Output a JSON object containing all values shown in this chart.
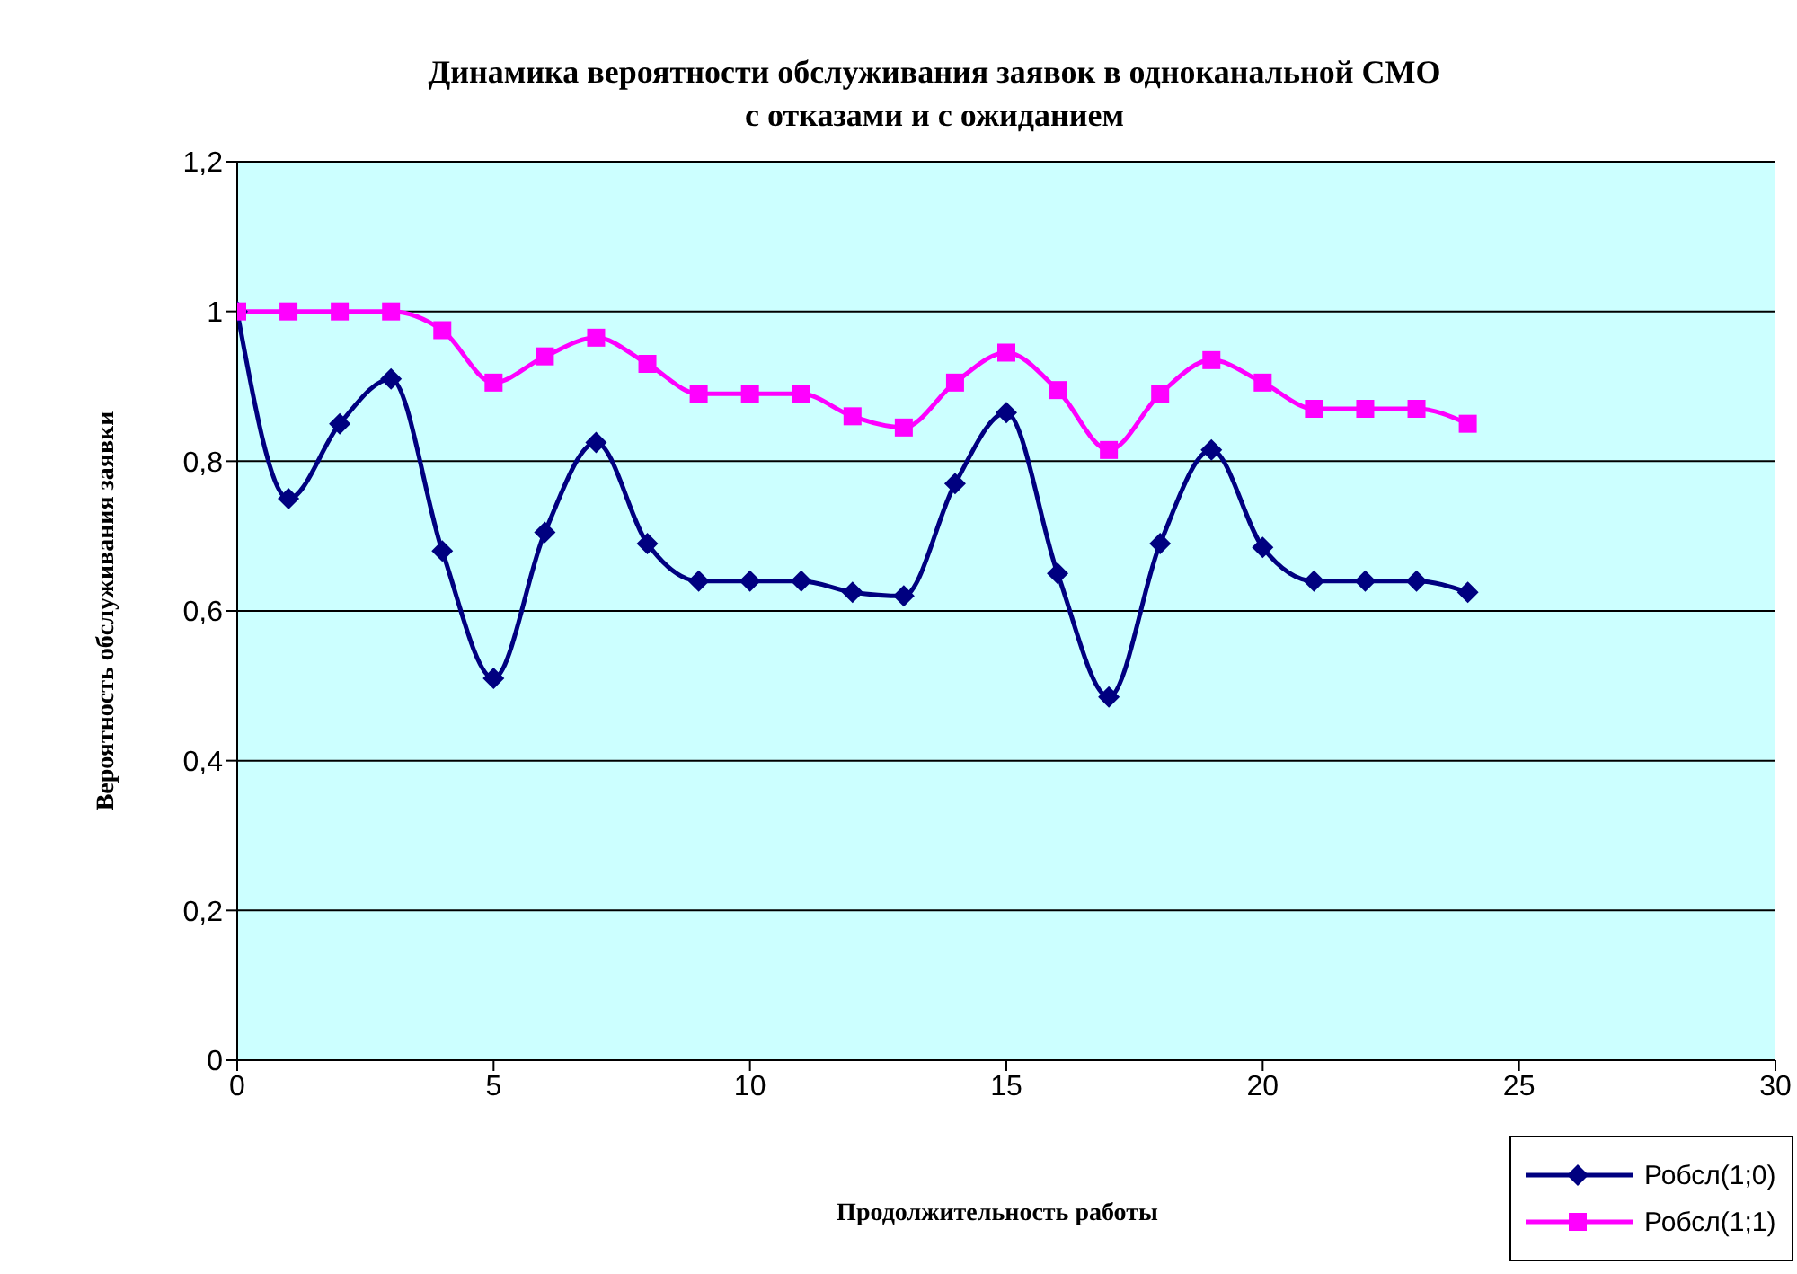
{
  "chart_data": {
    "type": "line",
    "title": "Динамика вероятности обслуживания заявок в одноканальной СМО\nс отказами и с ожиданием",
    "xlabel": "Продолжительность работы",
    "ylabel": "Вероятность обслуживания заявки",
    "x": [
      0,
      1,
      2,
      3,
      4,
      5,
      6,
      7,
      8,
      9,
      10,
      11,
      12,
      13,
      14,
      15,
      16,
      17,
      18,
      19,
      20,
      21,
      22,
      23,
      24
    ],
    "series": [
      {
        "name": "Робсл(1;0)",
        "color": "#000080",
        "marker": "diamond",
        "values": [
          1,
          0.75,
          0.85,
          0.91,
          0.68,
          0.51,
          0.705,
          0.825,
          0.69,
          0.64,
          0.64,
          0.64,
          0.625,
          0.62,
          0.77,
          0.865,
          0.65,
          0.485,
          0.69,
          0.815,
          0.685,
          0.64,
          0.64,
          0.64,
          0.625
        ]
      },
      {
        "name": "Робсл(1;1)",
        "color": "#ff00ff",
        "marker": "square",
        "values": [
          1,
          1,
          1,
          1,
          0.975,
          0.905,
          0.94,
          0.965,
          0.93,
          0.89,
          0.89,
          0.89,
          0.86,
          0.845,
          0.905,
          0.945,
          0.895,
          0.815,
          0.89,
          0.935,
          0.905,
          0.87,
          0.87,
          0.87,
          0.85
        ]
      }
    ],
    "xlim": [
      0,
      30
    ],
    "xticks": [
      0,
      5,
      10,
      15,
      20,
      25,
      30
    ],
    "ylim": [
      0,
      1.2
    ],
    "yticks": [
      {
        "value": 0,
        "label": "0"
      },
      {
        "value": 0.2,
        "label": "0,2"
      },
      {
        "value": 0.4,
        "label": "0,4"
      },
      {
        "value": 0.6,
        "label": "0,6"
      },
      {
        "value": 0.8,
        "label": "0,8"
      },
      {
        "value": 1,
        "label": "1"
      },
      {
        "value": 1.2,
        "label": "1,2"
      }
    ],
    "grid": "y",
    "legend": "bottom right"
  }
}
